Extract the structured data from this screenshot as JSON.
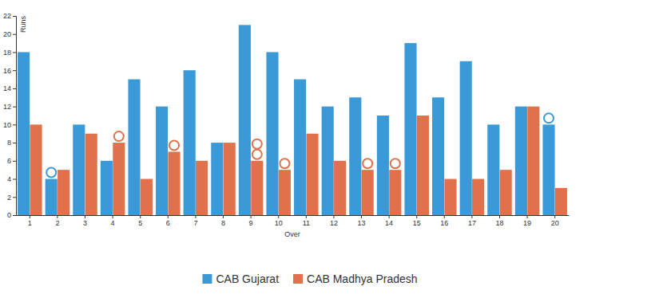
{
  "chart_data": {
    "type": "bar",
    "x_label": "Over",
    "y_label": "Runs",
    "categories": [
      "1",
      "2",
      "3",
      "4",
      "5",
      "6",
      "7",
      "8",
      "9",
      "10",
      "11",
      "12",
      "13",
      "14",
      "15",
      "16",
      "17",
      "18",
      "19",
      "20"
    ],
    "series": [
      {
        "name": "CAB Gujarat",
        "color": "#3a9ad8",
        "values": [
          18,
          4,
          10,
          6,
          15,
          12,
          16,
          8,
          21,
          18,
          15,
          12,
          13,
          11,
          19,
          13,
          17,
          10,
          12,
          10
        ],
        "wickets": [
          0,
          1,
          0,
          0,
          0,
          0,
          0,
          0,
          0,
          0,
          0,
          0,
          0,
          0,
          0,
          0,
          0,
          0,
          0,
          1
        ]
      },
      {
        "name": "CAB Madhya Pradesh",
        "color": "#e0714a",
        "values": [
          10,
          5,
          9,
          8,
          4,
          7,
          6,
          8,
          6,
          5,
          9,
          6,
          5,
          5,
          11,
          4,
          4,
          5,
          12,
          3
        ],
        "wickets": [
          0,
          0,
          0,
          1,
          0,
          1,
          0,
          0,
          2,
          1,
          0,
          0,
          1,
          1,
          0,
          0,
          0,
          0,
          0,
          0
        ]
      }
    ],
    "ylim": [
      0,
      22
    ],
    "yticks": [
      0,
      2,
      4,
      6,
      8,
      10,
      12,
      14,
      16,
      18,
      20,
      22
    ],
    "legend": "bottom"
  }
}
